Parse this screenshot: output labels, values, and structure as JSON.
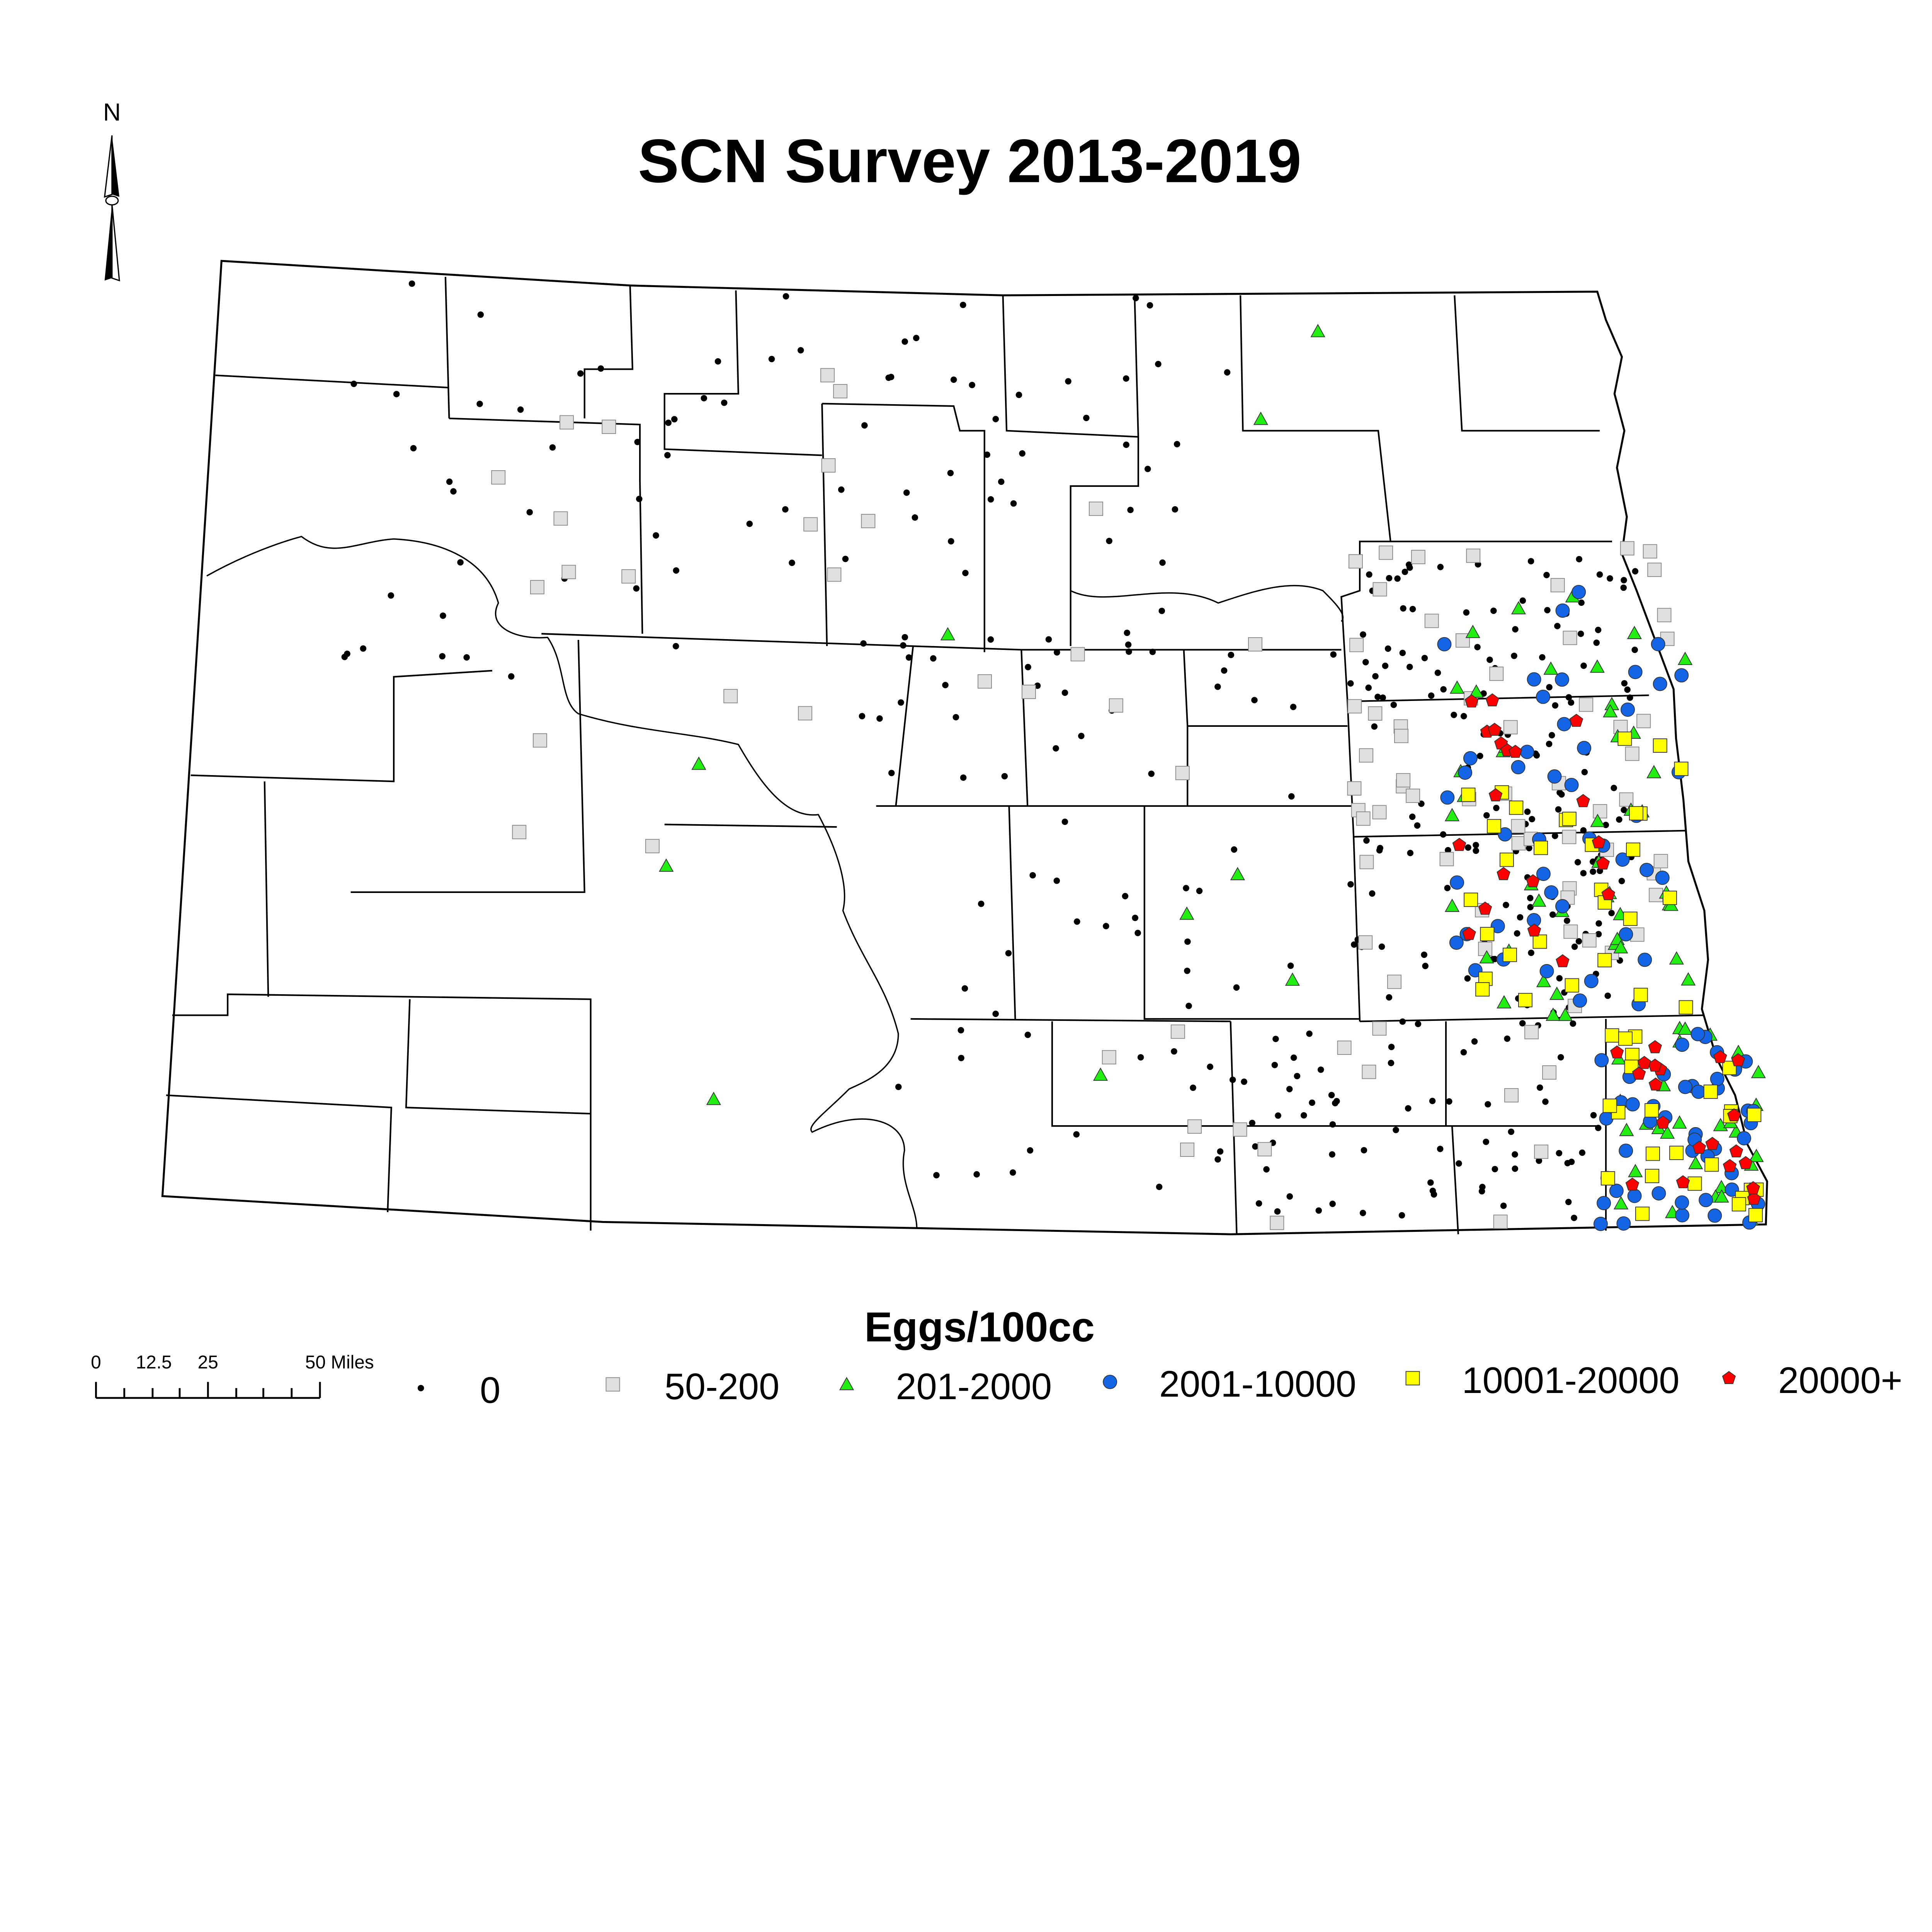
{
  "title": "SCN Survey 2013-2019",
  "north_arrow": {
    "label": "N"
  },
  "scale_bar": {
    "labels": [
      "0",
      "12.5",
      "25",
      "50 Miles"
    ]
  },
  "legend": {
    "title": "Eggs/100cc",
    "items": [
      {
        "label": "0",
        "symbol": "dot",
        "color": "#000000"
      },
      {
        "label": "50-200",
        "symbol": "square",
        "color": "#e0e0e0"
      },
      {
        "label": "201-2000",
        "symbol": "triangle",
        "color": "#22ee11"
      },
      {
        "label": "2001-10000",
        "symbol": "circle",
        "color": "#1464e6"
      },
      {
        "label": "10001-20000",
        "symbol": "square",
        "color": "#ffff00"
      },
      {
        "label": "20000+",
        "symbol": "pentagon",
        "color": "#ff0000"
      }
    ]
  }
}
